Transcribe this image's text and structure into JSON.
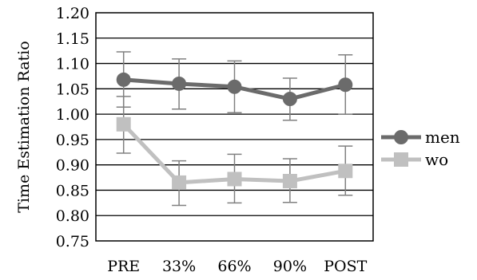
{
  "chart_data": {
    "type": "line",
    "categories": [
      "PRE",
      "33%",
      "66%",
      "90%",
      "POST"
    ],
    "ylabel": "Time Estimation Ratio",
    "ylim": [
      0.75,
      1.2
    ],
    "yticks": [
      "0.75",
      "0.80",
      "0.85",
      "0.90",
      "0.95",
      "1.00",
      "1.05",
      "1.10",
      "1.15",
      "1.20"
    ],
    "grid": true,
    "legend_position": "right",
    "series": [
      {
        "name": "men",
        "color": "#6b6b6b",
        "marker": "circle",
        "values": [
          1.068,
          1.06,
          1.054,
          1.03,
          1.058
        ],
        "error_low": [
          1.014,
          1.01,
          1.003,
          0.988,
          1.0
        ],
        "error_high": [
          1.123,
          1.109,
          1.105,
          1.071,
          1.117
        ]
      },
      {
        "name": "wo",
        "color": "#c0c0c0",
        "marker": "square",
        "values": [
          0.98,
          0.865,
          0.872,
          0.868,
          0.888
        ],
        "error_low": [
          0.923,
          0.82,
          0.825,
          0.826,
          0.84
        ],
        "error_high": [
          1.035,
          0.908,
          0.921,
          0.912,
          0.937
        ]
      }
    ],
    "error_bar_color": "#808080"
  }
}
